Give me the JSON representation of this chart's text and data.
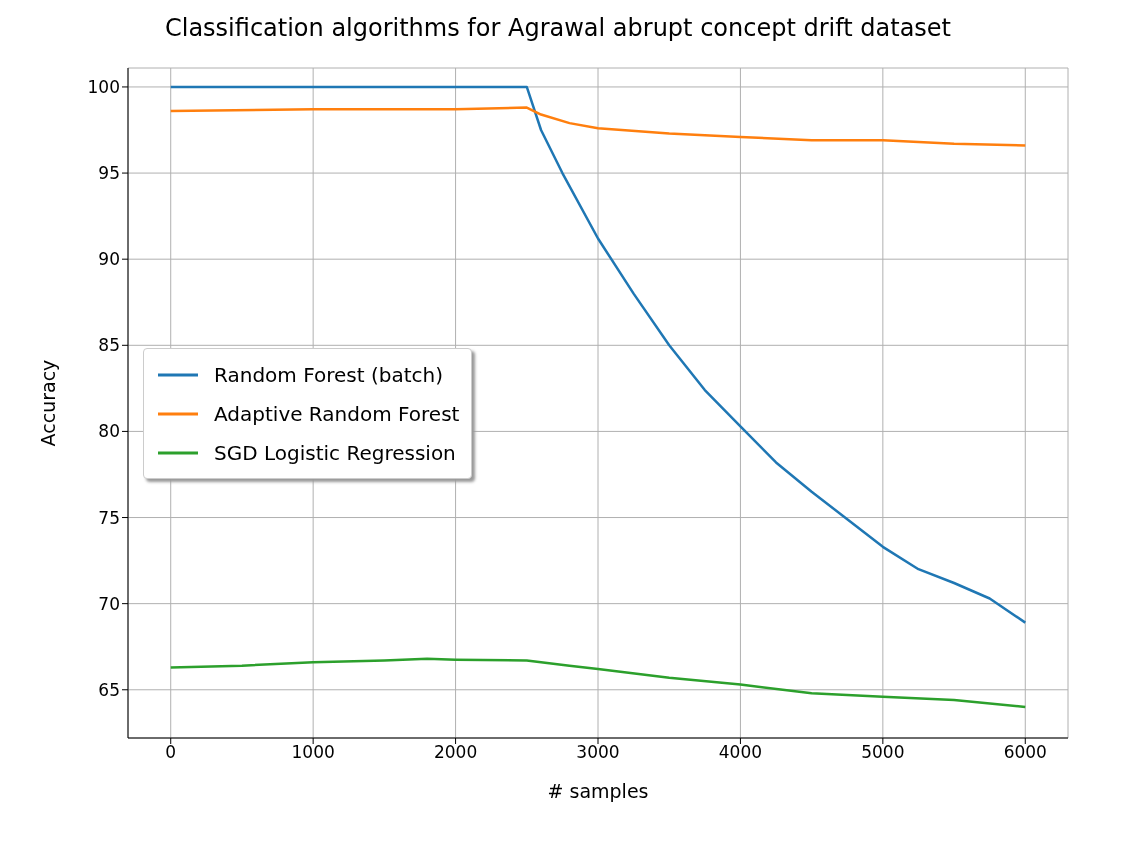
{
  "chart_data": {
    "type": "line",
    "title": "Classification algorithms for Agrawal abrupt concept drift dataset",
    "xlabel": "# samples",
    "ylabel": "Accuracy",
    "xlim": [
      -300,
      6300
    ],
    "xticks": [
      0,
      1000,
      2000,
      3000,
      4000,
      5000,
      6000
    ],
    "ylim": [
      62.2,
      101.1
    ],
    "yticks": [
      65,
      70,
      75,
      80,
      85,
      90,
      95,
      100
    ],
    "grid": true,
    "legend": "left",
    "line_style": "solid",
    "marker": "none",
    "series": [
      {
        "name": "Random Forest (batch)",
        "color": "#1f77b4",
        "x": [
          0,
          1000,
          2000,
          2500,
          2600,
          2750,
          3000,
          3250,
          3500,
          3750,
          4000,
          4250,
          4500,
          4750,
          5000,
          5250,
          5500,
          5750,
          6000
        ],
        "values": [
          100,
          100,
          100,
          100,
          97.5,
          95,
          91.2,
          88,
          85,
          82.4,
          80.3,
          78.2,
          76.5,
          74.9,
          73.3,
          72,
          71.2,
          70.3,
          68.9
        ]
      },
      {
        "name": "Adaptive Random Forest",
        "color": "#ff7f0e",
        "x": [
          0,
          1000,
          2000,
          2500,
          2600,
          2800,
          3000,
          3500,
          4000,
          4500,
          5000,
          5500,
          6000
        ],
        "values": [
          98.6,
          98.7,
          98.7,
          98.8,
          98.4,
          97.9,
          97.6,
          97.3,
          97.1,
          96.9,
          96.9,
          96.7,
          96.6
        ]
      },
      {
        "name": "SGD Logistic Regression",
        "color": "#2ca02c",
        "x": [
          0,
          500,
          1000,
          1500,
          1800,
          2000,
          2500,
          2800,
          3000,
          3500,
          4000,
          4500,
          5000,
          5500,
          6000
        ],
        "values": [
          66.3,
          66.4,
          66.6,
          66.7,
          66.8,
          66.75,
          66.7,
          66.4,
          66.2,
          65.7,
          65.3,
          64.8,
          64.6,
          64.4,
          64
        ]
      }
    ]
  }
}
